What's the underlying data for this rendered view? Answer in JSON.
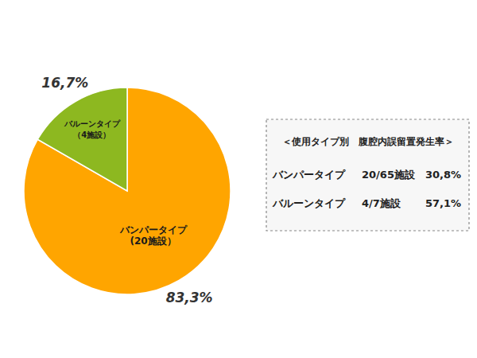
{
  "chart_data": {
    "type": "pie",
    "categories": [
      "バンパータイプ\n(20施設）",
      "バルーンタイプ\n（4施設）"
    ],
    "values": [
      83.3,
      16.7
    ],
    "value_labels": [
      "83,3%",
      "16,7%"
    ],
    "colors": [
      "#FFA500",
      "#8DB820"
    ],
    "data_labels": true,
    "annotations": [
      "＜使用タイプ別　腹腔内誤留置発生率＞",
      "バンパータイプ",
      "20/65施設",
      "30,8%",
      "バルーンタイプ",
      "4/7施設",
      "57,1%"
    ]
  }
}
